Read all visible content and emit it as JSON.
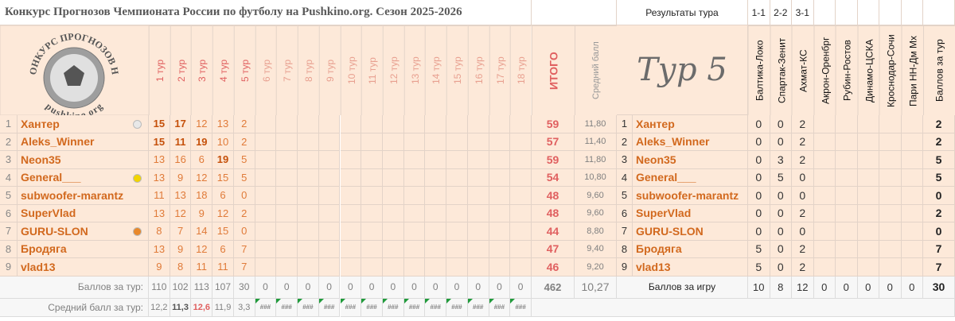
{
  "title": "Конкурс Прогнозов Чемпионата России по футболу на Pushkino.org. Сезон 2025-2026",
  "round_header": "Результаты тура",
  "results": [
    "1-1",
    "2-2",
    "3-1"
  ],
  "logo": {
    "top": "КОНКУРС ПРОГНОЗОВ НА",
    "bottom": "pushkino.org"
  },
  "tour_headers": [
    "1 тур",
    "2 тур",
    "3 тур",
    "4 тур",
    "5 тур",
    "6 тур",
    "7 тур",
    "8 тур",
    "9 тур",
    "10 тур",
    "11 тур",
    "12 тур",
    "13 тур",
    "14 тур",
    "15 тур",
    "16 тур",
    "17 тур",
    "18 тур"
  ],
  "total_header": "ИТОГО",
  "avg_header": "Средний балл",
  "round_title": "Тур 5",
  "matches": [
    "Балтика-Локо",
    "Спартак-Зенит",
    "Ахмат-КС",
    "Акрон-Оренбрг",
    "Рубин-Ростов",
    "Динамо-ЦСКА",
    "Кроснодар-Сочи",
    "Пари НН-Дм Мх"
  ],
  "round_points_header": "Баллов за тур",
  "rows": [
    {
      "rank": 1,
      "name": "Хантер",
      "tours": [
        15,
        17,
        12,
        13,
        2
      ],
      "total": 59,
      "avg": "11,80",
      "points": [
        0,
        0,
        2
      ],
      "sum": 2
    },
    {
      "rank": 2,
      "name": "Aleks_Winner",
      "tours": [
        15,
        11,
        19,
        10,
        2
      ],
      "total": 57,
      "avg": "11,40",
      "points": [
        0,
        0,
        2
      ],
      "sum": 2
    },
    {
      "rank": 3,
      "name": "Neon35",
      "tours": [
        13,
        16,
        6,
        19,
        5
      ],
      "total": 59,
      "avg": "11,80",
      "points": [
        0,
        3,
        2
      ],
      "sum": 5
    },
    {
      "rank": 4,
      "name": "General___",
      "tours": [
        13,
        9,
        12,
        15,
        5
      ],
      "total": 54,
      "avg": "10,80",
      "points": [
        0,
        5,
        0
      ],
      "sum": 5
    },
    {
      "rank": 5,
      "name": "subwoofer-marantz",
      "tours": [
        11,
        13,
        18,
        6,
        0
      ],
      "total": 48,
      "avg": "9,60",
      "points": [
        0,
        0,
        0
      ],
      "sum": 0
    },
    {
      "rank": 6,
      "name": "SuperVlad",
      "tours": [
        13,
        12,
        9,
        12,
        2
      ],
      "total": 48,
      "avg": "9,60",
      "points": [
        0,
        0,
        2
      ],
      "sum": 2
    },
    {
      "rank": 7,
      "name": "GURU-SLON",
      "tours": [
        8,
        7,
        14,
        15,
        0
      ],
      "total": 44,
      "avg": "8,80",
      "points": [
        0,
        0,
        0
      ],
      "sum": 0
    },
    {
      "rank": 8,
      "name": "Бродяга",
      "tours": [
        13,
        9,
        12,
        6,
        7
      ],
      "total": 47,
      "avg": "9,40",
      "points": [
        5,
        0,
        2
      ],
      "sum": 7
    },
    {
      "rank": 9,
      "name": "vlad13",
      "tours": [
        9,
        8,
        11,
        11,
        7
      ],
      "total": 46,
      "avg": "9,20",
      "points": [
        5,
        0,
        2
      ],
      "sum": 7
    }
  ],
  "totals": {
    "label": "Баллов за тур:",
    "tours": [
      110,
      102,
      113,
      107,
      30,
      0,
      0,
      0,
      0,
      0,
      0,
      0,
      0,
      0,
      0,
      0,
      0,
      0
    ],
    "total": 462,
    "avg": "10,27",
    "round_label": "Баллов за игру",
    "round_points": [
      10,
      8,
      12,
      0,
      0,
      0,
      0,
      0
    ],
    "round_sum": 30
  },
  "averages": {
    "label": "Средний балл за тур:",
    "tours": [
      "12,2",
      "11,3",
      "12,6",
      "11,9",
      "3,3",
      "###",
      "###",
      "###",
      "###",
      "###",
      "###",
      "###",
      "###",
      "###",
      "###",
      "###",
      "###",
      "###"
    ]
  }
}
